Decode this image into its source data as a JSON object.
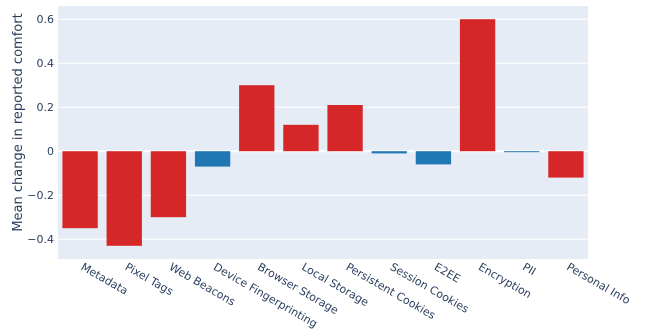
{
  "chart_data": {
    "type": "bar",
    "categories": [
      "Metadata",
      "Pixel Tags",
      "Web Beacons",
      "Device Fingerprinting",
      "Browser Storage",
      "Local Storage",
      "Persistent Cookies",
      "Session Cookies",
      "E2EE",
      "Encryption",
      "PII",
      "Personal Info"
    ],
    "values": [
      -0.35,
      -0.43,
      -0.3,
      -0.07,
      0.3,
      0.12,
      0.21,
      -0.01,
      -0.06,
      0.6,
      -0.003,
      -0.12
    ],
    "bar_colors": [
      "#d62728",
      "#d62728",
      "#d62728",
      "#1f77b4",
      "#d62728",
      "#d62728",
      "#d62728",
      "#1f77b4",
      "#1f77b4",
      "#d62728",
      "#1f77b4",
      "#d62728"
    ],
    "title": "",
    "xlabel": "",
    "ylabel": "Mean change in reported comfort",
    "ylim": [
      -0.49,
      0.66
    ],
    "yticks": [
      0.6,
      0.4,
      0.2,
      0,
      -0.2,
      -0.4
    ],
    "ytick_labels": [
      "0.6",
      "0.4",
      "0.2",
      "0",
      "−0.2",
      "−0.4"
    ],
    "grid": true,
    "background": "#e5ecf6"
  }
}
